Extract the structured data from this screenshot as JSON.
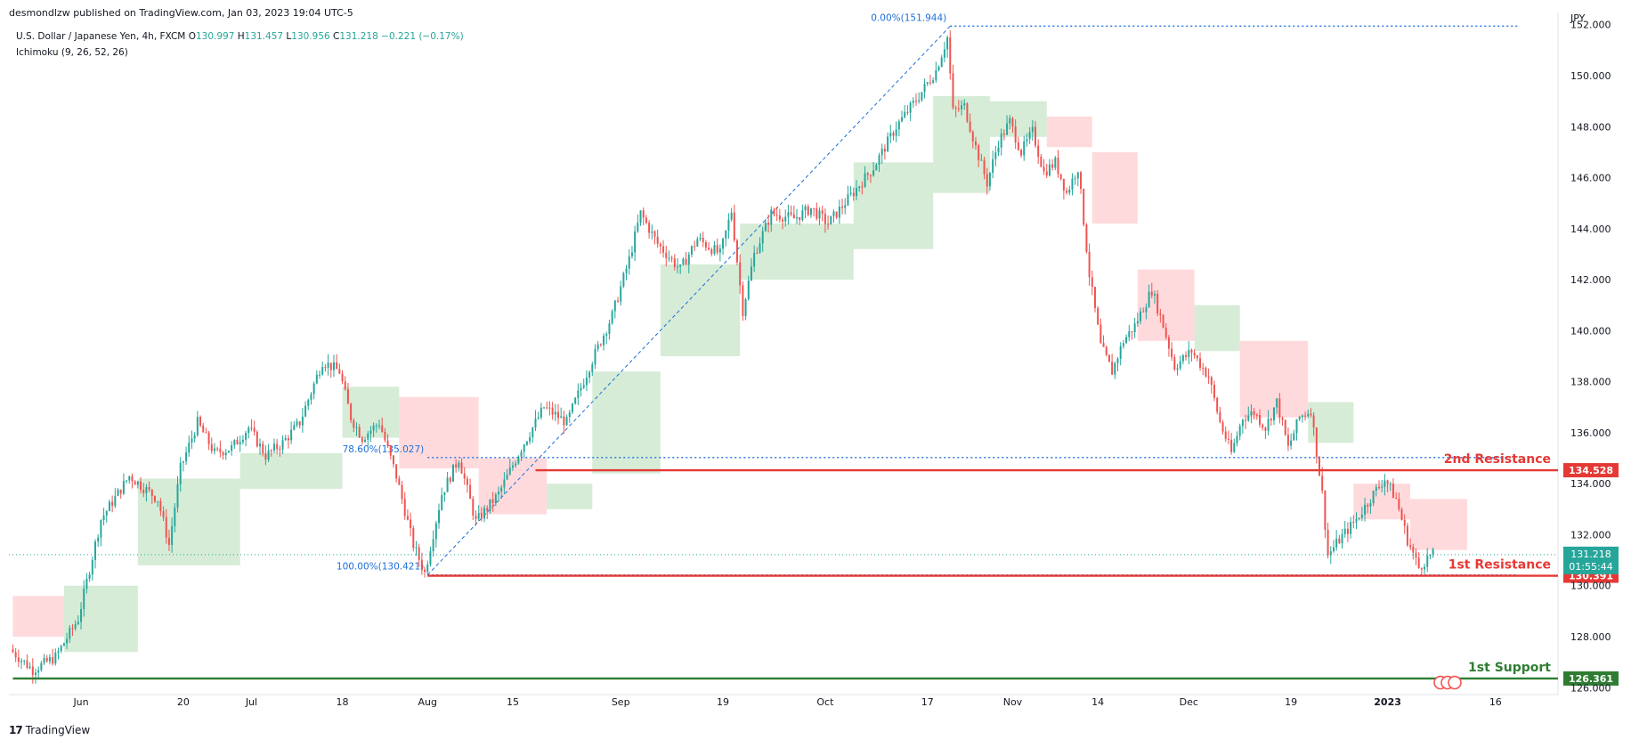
{
  "header": {
    "publisher": "desmondlzw published on TradingView.com, Jan 03, 2023 19:04 UTC-5"
  },
  "footer": {
    "brand": "TradingView",
    "logo_mark": "17"
  },
  "colors": {
    "bull": "#26a69a",
    "bear": "#ef5350",
    "cloud_bull": "#c8e6c9",
    "cloud_bear": "#ffcdd2",
    "resistance": "#e53935",
    "support": "#2e7d32",
    "fib": "#1e6fd9",
    "last_price_bg": "#26a69a"
  },
  "chart_data": {
    "type": "candlestick",
    "symbol_line": {
      "name": "U.S. Dollar / Japanese Yen, 4h, FXCM",
      "o_label": "O",
      "o": "130.997",
      "h_label": "H",
      "h": "131.457",
      "l_label": "L",
      "l": "130.956",
      "c_label": "C",
      "c": "131.218",
      "change": "−0.221 (−0.17%)"
    },
    "indicator": "Ichimoku (9, 26, 52, 26)",
    "currency": "JPY",
    "y_axis": {
      "min": 125.8,
      "max": 152.2,
      "ticks": [
        "126.000",
        "128.000",
        "130.000",
        "132.000",
        "134.000",
        "136.000",
        "138.000",
        "140.000",
        "142.000",
        "144.000",
        "146.000",
        "148.000",
        "150.000",
        "152.000"
      ],
      "tick_values": [
        126,
        128,
        130,
        132,
        134,
        136,
        138,
        140,
        142,
        144,
        146,
        148,
        150,
        152
      ]
    },
    "x_axis": {
      "ticks": [
        "Jun",
        "20",
        "Jul",
        "18",
        "Aug",
        "15",
        "Sep",
        "19",
        "Oct",
        "17",
        "Nov",
        "14",
        "Dec",
        "19",
        "2023",
        "16"
      ],
      "tick_days": [
        2,
        20,
        32,
        48,
        63,
        78,
        97,
        115,
        133,
        151,
        166,
        181,
        197,
        215,
        232,
        251
      ],
      "x_range_days": [
        -10.7,
        262
      ]
    },
    "price_path": [
      {
        "d": -10,
        "p": 127.5
      },
      {
        "d": -6,
        "p": 126.7
      },
      {
        "d": -2,
        "p": 127.2
      },
      {
        "d": 2,
        "p": 128.7
      },
      {
        "d": 6,
        "p": 132.6
      },
      {
        "d": 11,
        "p": 134.3
      },
      {
        "d": 16,
        "p": 133.4
      },
      {
        "d": 18,
        "p": 131.6
      },
      {
        "d": 20,
        "p": 134.6
      },
      {
        "d": 23,
        "p": 136.4
      },
      {
        "d": 26,
        "p": 135.2
      },
      {
        "d": 29,
        "p": 135.4
      },
      {
        "d": 32,
        "p": 136.2
      },
      {
        "d": 35,
        "p": 135.1
      },
      {
        "d": 38,
        "p": 135.6
      },
      {
        "d": 41,
        "p": 136.4
      },
      {
        "d": 45,
        "p": 138.8
      },
      {
        "d": 48,
        "p": 138.4
      },
      {
        "d": 50,
        "p": 136.6
      },
      {
        "d": 52,
        "p": 135.8
      },
      {
        "d": 55,
        "p": 136.4
      },
      {
        "d": 58,
        "p": 134.3
      },
      {
        "d": 61,
        "p": 131.6
      },
      {
        "d": 63,
        "p": 130.5
      },
      {
        "d": 66,
        "p": 133.6
      },
      {
        "d": 69,
        "p": 135.0
      },
      {
        "d": 72,
        "p": 132.5
      },
      {
        "d": 76,
        "p": 133.6
      },
      {
        "d": 80,
        "p": 135.4
      },
      {
        "d": 84,
        "p": 137.0
      },
      {
        "d": 88,
        "p": 136.4
      },
      {
        "d": 92,
        "p": 138.6
      },
      {
        "d": 96,
        "p": 140.6
      },
      {
        "d": 99,
        "p": 142.8
      },
      {
        "d": 101,
        "p": 144.6
      },
      {
        "d": 104,
        "p": 143.4
      },
      {
        "d": 108,
        "p": 142.4
      },
      {
        "d": 111,
        "p": 143.6
      },
      {
        "d": 115,
        "p": 143.0
      },
      {
        "d": 117,
        "p": 144.7
      },
      {
        "d": 119,
        "p": 140.8
      },
      {
        "d": 121,
        "p": 143.0
      },
      {
        "d": 124,
        "p": 144.6
      },
      {
        "d": 128,
        "p": 144.4
      },
      {
        "d": 131,
        "p": 144.8
      },
      {
        "d": 134,
        "p": 144.2
      },
      {
        "d": 138,
        "p": 145.3
      },
      {
        "d": 142,
        "p": 146.4
      },
      {
        "d": 146,
        "p": 148.0
      },
      {
        "d": 150,
        "p": 149.2
      },
      {
        "d": 153,
        "p": 150.2
      },
      {
        "d": 155,
        "p": 151.5
      },
      {
        "d": 156,
        "p": 148.6
      },
      {
        "d": 158,
        "p": 148.8
      },
      {
        "d": 160,
        "p": 147.2
      },
      {
        "d": 162,
        "p": 145.8
      },
      {
        "d": 164,
        "p": 147.4
      },
      {
        "d": 166,
        "p": 148.2
      },
      {
        "d": 168,
        "p": 147.0
      },
      {
        "d": 170,
        "p": 147.8
      },
      {
        "d": 172,
        "p": 146.2
      },
      {
        "d": 174,
        "p": 146.6
      },
      {
        "d": 176,
        "p": 145.4
      },
      {
        "d": 178,
        "p": 146.4
      },
      {
        "d": 180,
        "p": 142.2
      },
      {
        "d": 182,
        "p": 139.4
      },
      {
        "d": 184,
        "p": 138.4
      },
      {
        "d": 186,
        "p": 139.6
      },
      {
        "d": 188,
        "p": 140.2
      },
      {
        "d": 191,
        "p": 141.6
      },
      {
        "d": 193,
        "p": 140.2
      },
      {
        "d": 195,
        "p": 138.6
      },
      {
        "d": 198,
        "p": 139.2
      },
      {
        "d": 201,
        "p": 138.2
      },
      {
        "d": 203,
        "p": 136.4
      },
      {
        "d": 205,
        "p": 135.2
      },
      {
        "d": 207,
        "p": 136.6
      },
      {
        "d": 209,
        "p": 136.8
      },
      {
        "d": 211,
        "p": 136.2
      },
      {
        "d": 213,
        "p": 137.2
      },
      {
        "d": 215,
        "p": 135.4
      },
      {
        "d": 217,
        "p": 136.6
      },
      {
        "d": 219,
        "p": 136.9
      },
      {
        "d": 221,
        "p": 133.6
      },
      {
        "d": 222,
        "p": 131.2
      },
      {
        "d": 224,
        "p": 131.8
      },
      {
        "d": 227,
        "p": 132.6
      },
      {
        "d": 230,
        "p": 133.6
      },
      {
        "d": 232,
        "p": 134.2
      },
      {
        "d": 234,
        "p": 133.4
      },
      {
        "d": 236,
        "p": 131.8
      },
      {
        "d": 238,
        "p": 130.7
      },
      {
        "d": 240,
        "p": 131.2
      }
    ],
    "cloud_segments": [
      {
        "d0": -10,
        "d1": -1,
        "top": 129.6,
        "bot": 128.0,
        "color": "bear"
      },
      {
        "d0": -1,
        "d1": 12,
        "top": 130.0,
        "bot": 127.4,
        "color": "bull"
      },
      {
        "d0": 12,
        "d1": 30,
        "top": 134.2,
        "bot": 130.8,
        "color": "bull"
      },
      {
        "d0": 30,
        "d1": 48,
        "top": 135.2,
        "bot": 133.8,
        "color": "bull"
      },
      {
        "d0": 48,
        "d1": 58,
        "top": 137.8,
        "bot": 135.8,
        "color": "bull"
      },
      {
        "d0": 58,
        "d1": 72,
        "top": 137.4,
        "bot": 134.6,
        "color": "bear"
      },
      {
        "d0": 72,
        "d1": 84,
        "top": 135.0,
        "bot": 132.8,
        "color": "bear"
      },
      {
        "d0": 84,
        "d1": 92,
        "top": 134.0,
        "bot": 133.0,
        "color": "bull"
      },
      {
        "d0": 92,
        "d1": 104,
        "top": 138.4,
        "bot": 134.4,
        "color": "bull"
      },
      {
        "d0": 104,
        "d1": 118,
        "top": 142.6,
        "bot": 139.0,
        "color": "bull"
      },
      {
        "d0": 118,
        "d1": 138,
        "top": 144.2,
        "bot": 142.0,
        "color": "bull"
      },
      {
        "d0": 138,
        "d1": 152,
        "top": 146.6,
        "bot": 143.2,
        "color": "bull"
      },
      {
        "d0": 152,
        "d1": 162,
        "top": 149.2,
        "bot": 145.4,
        "color": "bull"
      },
      {
        "d0": 162,
        "d1": 172,
        "top": 149.0,
        "bot": 147.6,
        "color": "bull"
      },
      {
        "d0": 172,
        "d1": 180,
        "top": 148.4,
        "bot": 147.2,
        "color": "bear"
      },
      {
        "d0": 180,
        "d1": 188,
        "top": 147.0,
        "bot": 144.2,
        "color": "bear"
      },
      {
        "d0": 188,
        "d1": 198,
        "top": 142.4,
        "bot": 139.6,
        "color": "bear"
      },
      {
        "d0": 198,
        "d1": 206,
        "top": 141.0,
        "bot": 139.2,
        "color": "bull"
      },
      {
        "d0": 206,
        "d1": 218,
        "top": 139.6,
        "bot": 136.6,
        "color": "bear"
      },
      {
        "d0": 218,
        "d1": 226,
        "top": 137.2,
        "bot": 135.6,
        "color": "bull"
      },
      {
        "d0": 226,
        "d1": 236,
        "top": 134.0,
        "bot": 132.6,
        "color": "bear"
      },
      {
        "d0": 236,
        "d1": 246,
        "top": 133.4,
        "bot": 131.4,
        "color": "bear"
      }
    ],
    "fib_lines": [
      {
        "label": "0.00%(151.944)",
        "value": 151.944,
        "d0": 155,
        "d1": 255
      },
      {
        "label": "78.60%(135.027)",
        "value": 135.027,
        "d0": 63,
        "d1": 255
      },
      {
        "label": "100.00%(130.421)",
        "value": 130.421,
        "d0": 63,
        "d1": 255
      }
    ],
    "fib_trend": {
      "d0": 63,
      "p0": 130.421,
      "d1": 155,
      "p1": 151.944
    },
    "levels": [
      {
        "name": "2nd Resistance",
        "value": 134.528,
        "label": "134.528",
        "d0": 82,
        "d1": 262,
        "kind": "resistance"
      },
      {
        "name": "1st Resistance",
        "value": 130.391,
        "label": "130.391",
        "d0": 63,
        "d1": 262,
        "kind": "resistance"
      },
      {
        "name": "1st Support",
        "value": 126.361,
        "label": "126.361",
        "d0": -10,
        "d1": 262,
        "kind": "support"
      }
    ],
    "last_price": {
      "value": 131.218,
      "label": "131.218",
      "countdown": "01:55:44"
    }
  }
}
